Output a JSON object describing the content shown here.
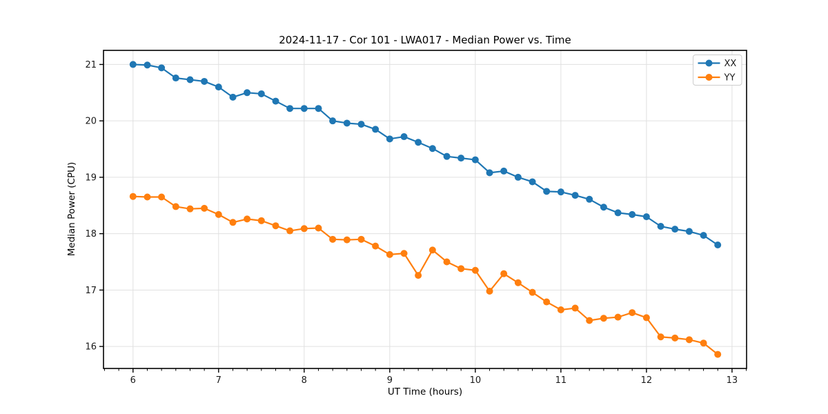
{
  "chart_data": {
    "type": "line",
    "title": "2024-11-17 - Cor 101 - LWA017 - Median Power vs. Time",
    "xlabel": "UT Time (hours)",
    "ylabel": "Median Power (CPU)",
    "legend_position": "upper right",
    "grid": true,
    "grid_color": "#e0e0e0",
    "xlim": [
      5.655,
      13.17
    ],
    "ylim": [
      15.61,
      21.25
    ],
    "xticks": [
      6,
      7,
      8,
      9,
      10,
      11,
      12,
      13
    ],
    "yticks": [
      16,
      17,
      18,
      19,
      20,
      21
    ],
    "x_minor_step_hours": 0.1667,
    "marker": "circle",
    "x": [
      6.0,
      6.167,
      6.333,
      6.5,
      6.667,
      6.833,
      7.0,
      7.167,
      7.333,
      7.5,
      7.667,
      7.833,
      8.0,
      8.167,
      8.333,
      8.5,
      8.667,
      8.833,
      9.0,
      9.167,
      9.333,
      9.5,
      9.667,
      9.833,
      10.0,
      10.167,
      10.333,
      10.5,
      10.667,
      10.833,
      11.0,
      11.167,
      11.333,
      11.5,
      11.667,
      11.833,
      12.0,
      12.167,
      12.333,
      12.5,
      12.667,
      12.833
    ],
    "series": [
      {
        "name": "XX",
        "color": "#1f77b4",
        "values": [
          21.0,
          20.99,
          20.94,
          20.76,
          20.73,
          20.7,
          20.6,
          20.42,
          20.5,
          20.48,
          20.35,
          20.22,
          20.22,
          20.22,
          20.0,
          19.96,
          19.94,
          19.85,
          19.68,
          19.72,
          19.62,
          19.51,
          19.37,
          19.34,
          19.31,
          19.08,
          19.11,
          19.0,
          18.92,
          18.75,
          18.74,
          18.68,
          18.61,
          18.47,
          18.37,
          18.34,
          18.3,
          18.13,
          18.08,
          18.04,
          17.97,
          17.8
        ]
      },
      {
        "name": "YY",
        "color": "#ff7f0e",
        "values": [
          18.66,
          18.65,
          18.65,
          18.48,
          18.44,
          18.45,
          18.34,
          18.2,
          18.26,
          18.23,
          18.14,
          18.05,
          18.09,
          18.1,
          17.9,
          17.89,
          17.9,
          17.78,
          17.63,
          17.65,
          17.26,
          17.71,
          17.5,
          17.38,
          17.35,
          16.98,
          17.29,
          17.13,
          16.96,
          16.79,
          16.65,
          16.68,
          16.46,
          16.5,
          16.52,
          16.6,
          16.51,
          16.17,
          16.15,
          16.12,
          16.06,
          15.86
        ]
      }
    ]
  }
}
